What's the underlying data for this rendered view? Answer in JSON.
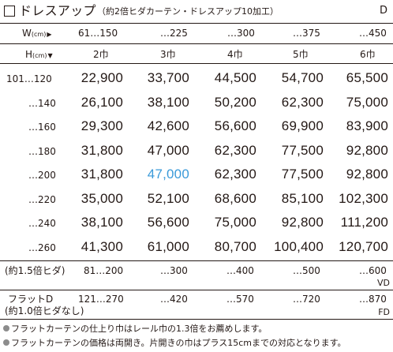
{
  "title": {
    "main": "ドレスアップ",
    "sub": "（約2倍ヒダカーテン・ドレスアップ10加工）",
    "code": "D"
  },
  "width_header": {
    "label": "W",
    "unit": "(cm)",
    "ranges": [
      "61…150",
      "…225",
      "…300",
      "…375",
      "…450"
    ]
  },
  "height_header": {
    "label": "H",
    "unit": "(cm)",
    "widths": [
      "2巾",
      "3巾",
      "4巾",
      "5巾",
      "6巾"
    ]
  },
  "price_table": {
    "rows": [
      {
        "height": "101…120",
        "prices": [
          "22,900",
          "33,700",
          "44,500",
          "54,700",
          "65,500"
        ]
      },
      {
        "height": "…140",
        "prices": [
          "26,100",
          "38,100",
          "50,200",
          "62,300",
          "75,000"
        ]
      },
      {
        "height": "…160",
        "prices": [
          "29,300",
          "42,600",
          "56,600",
          "69,900",
          "83,900"
        ]
      },
      {
        "height": "…180",
        "prices": [
          "31,800",
          "47,000",
          "62,300",
          "77,500",
          "92,800"
        ]
      },
      {
        "height": "…200",
        "prices": [
          "31,800",
          "47,000",
          "62,300",
          "77,500",
          "92,800"
        ]
      },
      {
        "height": "…220",
        "prices": [
          "35,000",
          "52,100",
          "68,600",
          "85,100",
          "102,300"
        ]
      },
      {
        "height": "…240",
        "prices": [
          "38,100",
          "56,600",
          "75,000",
          "92,800",
          "111,200"
        ]
      },
      {
        "height": "…260",
        "prices": [
          "41,300",
          "61,000",
          "80,700",
          "100,400",
          "120,700"
        ]
      }
    ],
    "highlight_color": "#3a9ad9"
  },
  "fullness_1_5": {
    "label": "(約1.5倍ヒダ)",
    "ranges": [
      "81…200",
      "…300",
      "…400",
      "…500",
      "…600"
    ],
    "code": "VD"
  },
  "flat": {
    "label": "フラットD",
    "sublabel": "(約1.0倍ヒダなし)",
    "ranges": [
      "121…270",
      "…420",
      "…570",
      "…720",
      "…870"
    ],
    "code": "FD"
  },
  "notes": [
    "フラットカーテンの仕上り巾はレール巾の1.3倍をお薦めします。",
    "フラットカーテンの価格は両開き。片開きの巾はプラス15cmまでの対応となります。"
  ]
}
